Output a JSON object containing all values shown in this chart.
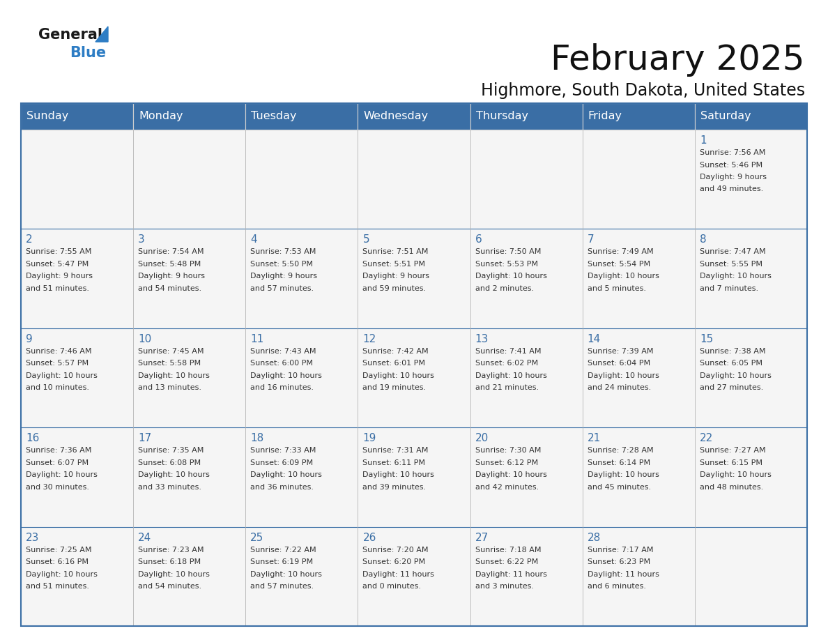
{
  "title": "February 2025",
  "subtitle": "Highmore, South Dakota, United States",
  "header_color": "#3A6EA5",
  "header_text_color": "#FFFFFF",
  "cell_bg_color": "#F5F5F5",
  "day_number_color": "#3A6EA5",
  "info_text_color": "#333333",
  "border_color": "#3A6EA5",
  "cell_line_color": "#BBBBBB",
  "logo_general_color": "#1a1a1a",
  "logo_blue_color": "#2E7DC4",
  "logo_triangle_color": "#2E7DC4",
  "days_of_week": [
    "Sunday",
    "Monday",
    "Tuesday",
    "Wednesday",
    "Thursday",
    "Friday",
    "Saturday"
  ],
  "weeks": [
    [
      {
        "day": null,
        "info": null
      },
      {
        "day": null,
        "info": null
      },
      {
        "day": null,
        "info": null
      },
      {
        "day": null,
        "info": null
      },
      {
        "day": null,
        "info": null
      },
      {
        "day": null,
        "info": null
      },
      {
        "day": 1,
        "info": "Sunrise: 7:56 AM\nSunset: 5:46 PM\nDaylight: 9 hours\nand 49 minutes."
      }
    ],
    [
      {
        "day": 2,
        "info": "Sunrise: 7:55 AM\nSunset: 5:47 PM\nDaylight: 9 hours\nand 51 minutes."
      },
      {
        "day": 3,
        "info": "Sunrise: 7:54 AM\nSunset: 5:48 PM\nDaylight: 9 hours\nand 54 minutes."
      },
      {
        "day": 4,
        "info": "Sunrise: 7:53 AM\nSunset: 5:50 PM\nDaylight: 9 hours\nand 57 minutes."
      },
      {
        "day": 5,
        "info": "Sunrise: 7:51 AM\nSunset: 5:51 PM\nDaylight: 9 hours\nand 59 minutes."
      },
      {
        "day": 6,
        "info": "Sunrise: 7:50 AM\nSunset: 5:53 PM\nDaylight: 10 hours\nand 2 minutes."
      },
      {
        "day": 7,
        "info": "Sunrise: 7:49 AM\nSunset: 5:54 PM\nDaylight: 10 hours\nand 5 minutes."
      },
      {
        "day": 8,
        "info": "Sunrise: 7:47 AM\nSunset: 5:55 PM\nDaylight: 10 hours\nand 7 minutes."
      }
    ],
    [
      {
        "day": 9,
        "info": "Sunrise: 7:46 AM\nSunset: 5:57 PM\nDaylight: 10 hours\nand 10 minutes."
      },
      {
        "day": 10,
        "info": "Sunrise: 7:45 AM\nSunset: 5:58 PM\nDaylight: 10 hours\nand 13 minutes."
      },
      {
        "day": 11,
        "info": "Sunrise: 7:43 AM\nSunset: 6:00 PM\nDaylight: 10 hours\nand 16 minutes."
      },
      {
        "day": 12,
        "info": "Sunrise: 7:42 AM\nSunset: 6:01 PM\nDaylight: 10 hours\nand 19 minutes."
      },
      {
        "day": 13,
        "info": "Sunrise: 7:41 AM\nSunset: 6:02 PM\nDaylight: 10 hours\nand 21 minutes."
      },
      {
        "day": 14,
        "info": "Sunrise: 7:39 AM\nSunset: 6:04 PM\nDaylight: 10 hours\nand 24 minutes."
      },
      {
        "day": 15,
        "info": "Sunrise: 7:38 AM\nSunset: 6:05 PM\nDaylight: 10 hours\nand 27 minutes."
      }
    ],
    [
      {
        "day": 16,
        "info": "Sunrise: 7:36 AM\nSunset: 6:07 PM\nDaylight: 10 hours\nand 30 minutes."
      },
      {
        "day": 17,
        "info": "Sunrise: 7:35 AM\nSunset: 6:08 PM\nDaylight: 10 hours\nand 33 minutes."
      },
      {
        "day": 18,
        "info": "Sunrise: 7:33 AM\nSunset: 6:09 PM\nDaylight: 10 hours\nand 36 minutes."
      },
      {
        "day": 19,
        "info": "Sunrise: 7:31 AM\nSunset: 6:11 PM\nDaylight: 10 hours\nand 39 minutes."
      },
      {
        "day": 20,
        "info": "Sunrise: 7:30 AM\nSunset: 6:12 PM\nDaylight: 10 hours\nand 42 minutes."
      },
      {
        "day": 21,
        "info": "Sunrise: 7:28 AM\nSunset: 6:14 PM\nDaylight: 10 hours\nand 45 minutes."
      },
      {
        "day": 22,
        "info": "Sunrise: 7:27 AM\nSunset: 6:15 PM\nDaylight: 10 hours\nand 48 minutes."
      }
    ],
    [
      {
        "day": 23,
        "info": "Sunrise: 7:25 AM\nSunset: 6:16 PM\nDaylight: 10 hours\nand 51 minutes."
      },
      {
        "day": 24,
        "info": "Sunrise: 7:23 AM\nSunset: 6:18 PM\nDaylight: 10 hours\nand 54 minutes."
      },
      {
        "day": 25,
        "info": "Sunrise: 7:22 AM\nSunset: 6:19 PM\nDaylight: 10 hours\nand 57 minutes."
      },
      {
        "day": 26,
        "info": "Sunrise: 7:20 AM\nSunset: 6:20 PM\nDaylight: 11 hours\nand 0 minutes."
      },
      {
        "day": 27,
        "info": "Sunrise: 7:18 AM\nSunset: 6:22 PM\nDaylight: 11 hours\nand 3 minutes."
      },
      {
        "day": 28,
        "info": "Sunrise: 7:17 AM\nSunset: 6:23 PM\nDaylight: 11 hours\nand 6 minutes."
      },
      {
        "day": null,
        "info": null
      }
    ]
  ]
}
